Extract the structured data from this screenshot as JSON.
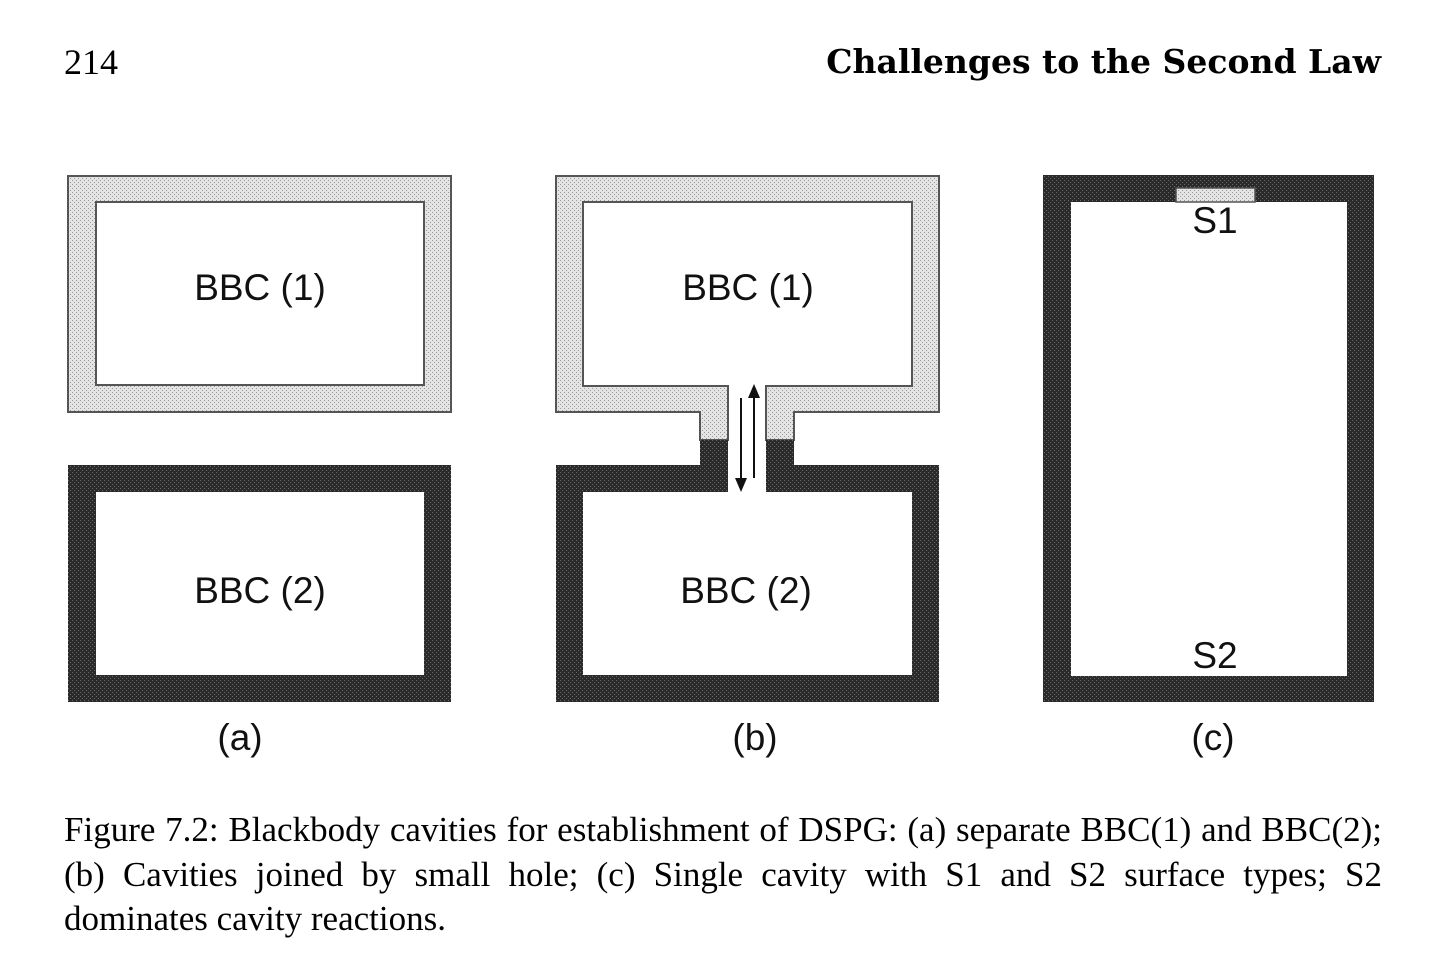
{
  "header": {
    "page_number": "214",
    "running_title": "Challenges to the Second Law"
  },
  "figure": {
    "colors": {
      "light_wall": "#dcdcdc",
      "dark_wall": "#2c2c2c",
      "cavity": "#ffffff",
      "outline": "#555555"
    },
    "panel_a": {
      "top_label": "BBC (1)",
      "bottom_label": "BBC (2)",
      "sublabel": "(a)"
    },
    "panel_b": {
      "top_label": "BBC (1)",
      "bottom_label": "BBC (2)",
      "sublabel": "(b)"
    },
    "panel_c": {
      "surface_top": "S1",
      "surface_bottom": "S2",
      "sublabel": "(c)"
    }
  },
  "caption": {
    "text": "Figure 7.2: Blackbody cavities for establishment of DSPG: (a) separate BBC(1) and BBC(2); (b) Cavities joined by small hole; (c) Single cavity with S1 and S2 surface types; S2 dominates cavity reactions."
  }
}
